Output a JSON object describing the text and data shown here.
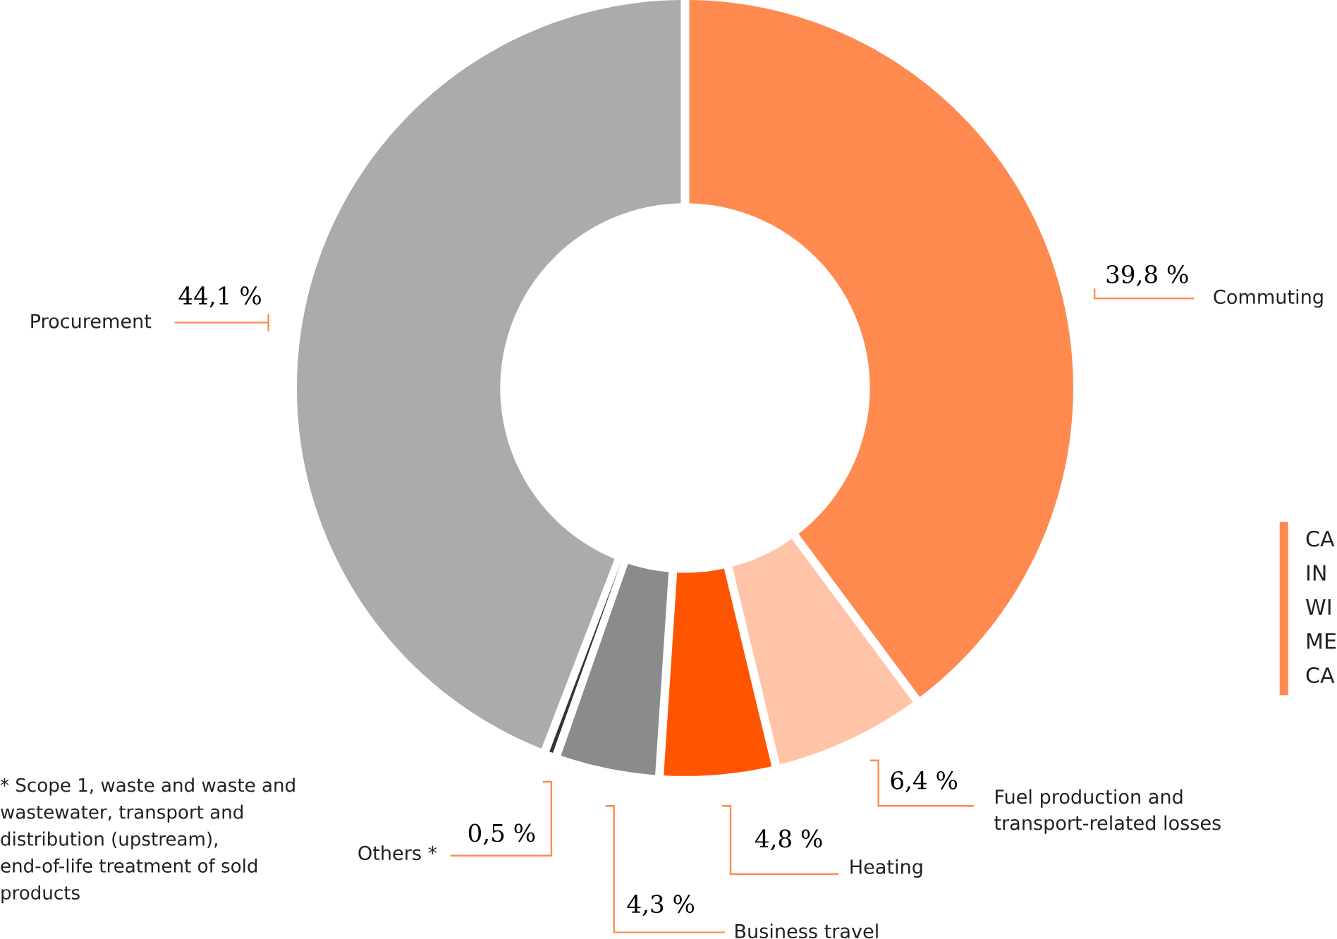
{
  "chart_data": {
    "type": "donut",
    "categories": [
      "Commuting",
      "Fuel production and transport-related losses",
      "Heating",
      "Business travel",
      "Others *",
      "Procurement"
    ],
    "values": [
      39.8,
      6.4,
      4.8,
      4.3,
      0.5,
      44.1
    ],
    "colors": [
      "#ff8a50",
      "#ffc4a8",
      "#ff5500",
      "#8a8b8d",
      "#333333",
      "#aaabad"
    ],
    "value_labels": [
      "39,8 %",
      "6,4 %",
      "4,8 %",
      "4,3 %",
      "0,5 %",
      "44,1 %"
    ],
    "annotations": [
      "* Scope 1, waste and waste and wastewater, transport and distribution (upstream), end-of-life treatment of sold products",
      "CA",
      "IN",
      "WI",
      "ME",
      "CA"
    ]
  }
}
